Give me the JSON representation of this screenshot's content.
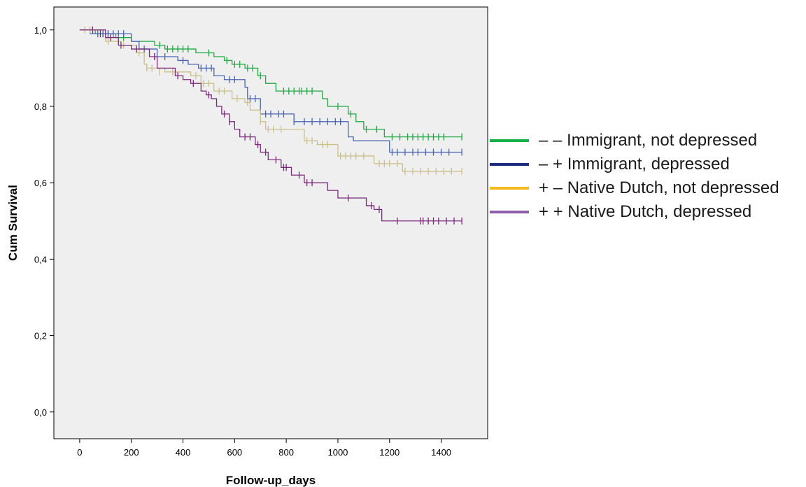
{
  "chart_data": {
    "type": "line",
    "subtype": "kaplan-meier step plot with censor marks",
    "title": "",
    "xlabel": "Follow-up_days",
    "ylabel": "Cum Survival",
    "xlim": [
      -100,
      1580
    ],
    "ylim": [
      -0.07,
      1.06
    ],
    "x_ticks": [
      0,
      200,
      400,
      600,
      800,
      1000,
      1200,
      1400
    ],
    "x_tick_labels": [
      "0",
      "200",
      "400",
      "600",
      "800",
      "1000",
      "1200",
      "1400"
    ],
    "y_ticks": [
      0,
      0.2,
      0.4,
      0.6,
      0.8,
      1.0
    ],
    "y_tick_labels": [
      "0,0",
      "0,2",
      "0,4",
      "0,6",
      "0,8",
      "1,0"
    ],
    "grid": false,
    "plot_background": "#efefef",
    "legend_position": "right",
    "series": [
      {
        "name": "– – Immigrant, not depressed",
        "line_color": "#22a844",
        "legend_color": "#17b04a",
        "steps": [
          [
            0,
            1.0
          ],
          [
            60,
            0.99
          ],
          [
            140,
            0.98
          ],
          [
            200,
            0.97
          ],
          [
            290,
            0.96
          ],
          [
            330,
            0.95
          ],
          [
            450,
            0.94
          ],
          [
            520,
            0.93
          ],
          [
            560,
            0.92
          ],
          [
            590,
            0.91
          ],
          [
            640,
            0.9
          ],
          [
            690,
            0.88
          ],
          [
            720,
            0.86
          ],
          [
            760,
            0.84
          ],
          [
            940,
            0.82
          ],
          [
            960,
            0.8
          ],
          [
            1040,
            0.78
          ],
          [
            1070,
            0.76
          ],
          [
            1100,
            0.74
          ],
          [
            1180,
            0.72
          ],
          [
            1480,
            0.72
          ]
        ],
        "censors": [
          [
            90,
            0.99
          ],
          [
            110,
            0.99
          ],
          [
            170,
            0.98
          ],
          [
            310,
            0.96
          ],
          [
            340,
            0.95
          ],
          [
            360,
            0.95
          ],
          [
            380,
            0.95
          ],
          [
            400,
            0.95
          ],
          [
            420,
            0.95
          ],
          [
            500,
            0.94
          ],
          [
            570,
            0.92
          ],
          [
            600,
            0.91
          ],
          [
            620,
            0.91
          ],
          [
            650,
            0.9
          ],
          [
            670,
            0.9
          ],
          [
            700,
            0.88
          ],
          [
            790,
            0.84
          ],
          [
            810,
            0.84
          ],
          [
            830,
            0.84
          ],
          [
            850,
            0.84
          ],
          [
            860,
            0.84
          ],
          [
            880,
            0.84
          ],
          [
            900,
            0.84
          ],
          [
            1000,
            0.8
          ],
          [
            1050,
            0.78
          ],
          [
            1110,
            0.74
          ],
          [
            1150,
            0.74
          ],
          [
            1210,
            0.72
          ],
          [
            1240,
            0.72
          ],
          [
            1270,
            0.72
          ],
          [
            1290,
            0.72
          ],
          [
            1310,
            0.72
          ],
          [
            1330,
            0.72
          ],
          [
            1350,
            0.72
          ],
          [
            1370,
            0.72
          ],
          [
            1390,
            0.72
          ],
          [
            1410,
            0.72
          ],
          [
            1480,
            0.72
          ]
        ]
      },
      {
        "name": "– + Immigrant, depressed",
        "line_color": "#4a64b2",
        "legend_color": "#1e2c80",
        "steps": [
          [
            0,
            1.0
          ],
          [
            40,
            0.99
          ],
          [
            200,
            0.97
          ],
          [
            230,
            0.95
          ],
          [
            300,
            0.93
          ],
          [
            380,
            0.92
          ],
          [
            420,
            0.91
          ],
          [
            460,
            0.9
          ],
          [
            520,
            0.88
          ],
          [
            560,
            0.87
          ],
          [
            640,
            0.85
          ],
          [
            650,
            0.82
          ],
          [
            700,
            0.78
          ],
          [
            830,
            0.76
          ],
          [
            1040,
            0.72
          ],
          [
            1060,
            0.71
          ],
          [
            1200,
            0.68
          ],
          [
            1480,
            0.68
          ]
        ],
        "censors": [
          [
            70,
            0.99
          ],
          [
            90,
            0.99
          ],
          [
            110,
            0.99
          ],
          [
            130,
            0.99
          ],
          [
            150,
            0.99
          ],
          [
            170,
            0.99
          ],
          [
            250,
            0.95
          ],
          [
            290,
            0.93
          ],
          [
            330,
            0.93
          ],
          [
            400,
            0.92
          ],
          [
            470,
            0.9
          ],
          [
            490,
            0.9
          ],
          [
            510,
            0.9
          ],
          [
            580,
            0.87
          ],
          [
            600,
            0.87
          ],
          [
            660,
            0.82
          ],
          [
            680,
            0.82
          ],
          [
            720,
            0.78
          ],
          [
            740,
            0.78
          ],
          [
            770,
            0.78
          ],
          [
            790,
            0.78
          ],
          [
            830,
            0.76
          ],
          [
            870,
            0.76
          ],
          [
            900,
            0.76
          ],
          [
            930,
            0.76
          ],
          [
            960,
            0.76
          ],
          [
            990,
            0.76
          ],
          [
            1010,
            0.76
          ],
          [
            1210,
            0.68
          ],
          [
            1230,
            0.68
          ],
          [
            1260,
            0.68
          ],
          [
            1290,
            0.68
          ],
          [
            1310,
            0.68
          ],
          [
            1340,
            0.68
          ],
          [
            1370,
            0.68
          ],
          [
            1400,
            0.68
          ],
          [
            1430,
            0.68
          ],
          [
            1480,
            0.68
          ]
        ]
      },
      {
        "name": "+ – Native Dutch, not depressed",
        "line_color": "#c9c08c",
        "legend_color": "#f5b91b",
        "steps": [
          [
            0,
            1.0
          ],
          [
            100,
            0.97
          ],
          [
            160,
            0.96
          ],
          [
            220,
            0.94
          ],
          [
            250,
            0.91
          ],
          [
            260,
            0.9
          ],
          [
            330,
            0.89
          ],
          [
            430,
            0.88
          ],
          [
            470,
            0.86
          ],
          [
            520,
            0.84
          ],
          [
            590,
            0.82
          ],
          [
            640,
            0.81
          ],
          [
            660,
            0.79
          ],
          [
            700,
            0.76
          ],
          [
            720,
            0.74
          ],
          [
            870,
            0.71
          ],
          [
            920,
            0.7
          ],
          [
            1000,
            0.67
          ],
          [
            1140,
            0.65
          ],
          [
            1250,
            0.63
          ],
          [
            1480,
            0.63
          ]
        ],
        "censors": [
          [
            20,
            1.0
          ],
          [
            40,
            1.0
          ],
          [
            110,
            0.97
          ],
          [
            170,
            0.96
          ],
          [
            230,
            0.94
          ],
          [
            260,
            0.9
          ],
          [
            280,
            0.9
          ],
          [
            310,
            0.89
          ],
          [
            360,
            0.89
          ],
          [
            450,
            0.88
          ],
          [
            480,
            0.86
          ],
          [
            500,
            0.86
          ],
          [
            540,
            0.84
          ],
          [
            560,
            0.84
          ],
          [
            610,
            0.82
          ],
          [
            650,
            0.81
          ],
          [
            700,
            0.76
          ],
          [
            730,
            0.74
          ],
          [
            750,
            0.74
          ],
          [
            780,
            0.74
          ],
          [
            880,
            0.71
          ],
          [
            900,
            0.71
          ],
          [
            940,
            0.7
          ],
          [
            960,
            0.7
          ],
          [
            1010,
            0.67
          ],
          [
            1030,
            0.67
          ],
          [
            1050,
            0.67
          ],
          [
            1070,
            0.67
          ],
          [
            1100,
            0.67
          ],
          [
            1160,
            0.65
          ],
          [
            1180,
            0.65
          ],
          [
            1200,
            0.65
          ],
          [
            1230,
            0.65
          ],
          [
            1260,
            0.63
          ],
          [
            1290,
            0.63
          ],
          [
            1320,
            0.63
          ],
          [
            1350,
            0.63
          ],
          [
            1380,
            0.63
          ],
          [
            1410,
            0.63
          ],
          [
            1440,
            0.63
          ],
          [
            1480,
            0.63
          ]
        ]
      },
      {
        "name": "+ + Native Dutch, depressed",
        "line_color": "#7a2a7a",
        "legend_color": "#8f5fae",
        "steps": [
          [
            0,
            1.0
          ],
          [
            100,
            0.98
          ],
          [
            150,
            0.96
          ],
          [
            200,
            0.95
          ],
          [
            270,
            0.93
          ],
          [
            300,
            0.9
          ],
          [
            370,
            0.88
          ],
          [
            400,
            0.87
          ],
          [
            430,
            0.86
          ],
          [
            470,
            0.84
          ],
          [
            490,
            0.83
          ],
          [
            510,
            0.82
          ],
          [
            530,
            0.8
          ],
          [
            550,
            0.78
          ],
          [
            580,
            0.76
          ],
          [
            600,
            0.74
          ],
          [
            620,
            0.72
          ],
          [
            680,
            0.7
          ],
          [
            700,
            0.68
          ],
          [
            730,
            0.66
          ],
          [
            780,
            0.64
          ],
          [
            820,
            0.62
          ],
          [
            870,
            0.6
          ],
          [
            960,
            0.58
          ],
          [
            1000,
            0.56
          ],
          [
            1110,
            0.54
          ],
          [
            1140,
            0.53
          ],
          [
            1170,
            0.5
          ],
          [
            1480,
            0.5
          ]
        ],
        "censors": [
          [
            50,
            1.0
          ],
          [
            80,
            0.99
          ],
          [
            120,
            0.98
          ],
          [
            160,
            0.96
          ],
          [
            220,
            0.95
          ],
          [
            290,
            0.93
          ],
          [
            380,
            0.88
          ],
          [
            440,
            0.86
          ],
          [
            500,
            0.83
          ],
          [
            560,
            0.78
          ],
          [
            580,
            0.76
          ],
          [
            640,
            0.72
          ],
          [
            660,
            0.72
          ],
          [
            690,
            0.7
          ],
          [
            720,
            0.68
          ],
          [
            760,
            0.66
          ],
          [
            790,
            0.64
          ],
          [
            800,
            0.64
          ],
          [
            850,
            0.62
          ],
          [
            880,
            0.6
          ],
          [
            900,
            0.6
          ],
          [
            1040,
            0.56
          ],
          [
            1130,
            0.54
          ],
          [
            1160,
            0.53
          ],
          [
            1230,
            0.5
          ],
          [
            1320,
            0.5
          ],
          [
            1330,
            0.5
          ],
          [
            1350,
            0.5
          ],
          [
            1370,
            0.5
          ],
          [
            1390,
            0.5
          ],
          [
            1420,
            0.5
          ],
          [
            1450,
            0.5
          ],
          [
            1480,
            0.5
          ]
        ]
      }
    ]
  }
}
